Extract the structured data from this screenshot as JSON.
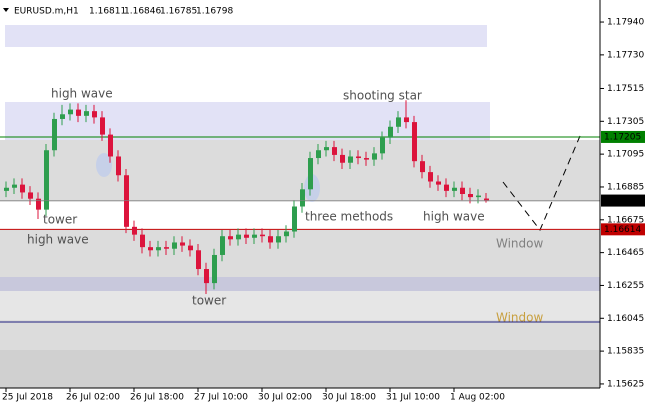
{
  "chart_data": {
    "type": "candlestick",
    "symbol": "EURUSD.m,H1",
    "categories": [
      "25 Jul 2018",
      null,
      null,
      null,
      null,
      null,
      null,
      null,
      "26 Jul 02:00",
      null,
      null,
      null,
      null,
      null,
      null,
      null,
      "26 Jul 18:00",
      null,
      null,
      null,
      null,
      null,
      null,
      null,
      "27 Jul 10:00",
      null,
      null,
      null,
      null,
      null,
      null,
      null,
      "30 Jul 02:00",
      null,
      null,
      null,
      null,
      null,
      null,
      null,
      "30 Jul 18:00",
      null,
      null,
      null,
      null,
      null,
      null,
      null,
      "31 Jul 10:00",
      null,
      null,
      null,
      null,
      null,
      null,
      null,
      "1 Aug 02:00",
      null,
      null,
      null,
      null
    ],
    "open": [
      1.1686,
      1.1688,
      1.169,
      1.1685,
      1.1681,
      1.1674,
      1.1712,
      1.1732,
      1.1735,
      1.1738,
      1.1734,
      1.1737,
      1.1733,
      1.1722,
      1.1708,
      1.1696,
      1.1663,
      1.1658,
      1.165,
      1.1648,
      1.165,
      1.1649,
      1.1653,
      1.1651,
      1.1648,
      1.1636,
      1.1627,
      1.1645,
      1.1657,
      1.1655,
      1.1658,
      1.1656,
      1.1658,
      1.1657,
      1.1653,
      1.1657,
      1.166,
      1.1676,
      1.1687,
      1.1707,
      1.1712,
      1.1714,
      1.1709,
      1.1704,
      1.1708,
      1.1707,
      1.1706,
      1.171,
      1.172,
      1.1727,
      1.1733,
      1.173,
      1.1705,
      1.1698,
      1.1692,
      1.169,
      1.1686,
      1.1688,
      1.1684,
      1.1682,
      1.16811
    ],
    "high": [
      1.1692,
      1.1694,
      1.1694,
      1.1689,
      1.1685,
      1.1716,
      1.1736,
      1.1741,
      1.1742,
      1.1742,
      1.1741,
      1.1741,
      1.1737,
      1.1726,
      1.1712,
      1.17,
      1.1667,
      1.1662,
      1.1654,
      1.1654,
      1.1654,
      1.1657,
      1.1657,
      1.1655,
      1.1652,
      1.164,
      1.1649,
      1.1661,
      1.1661,
      1.1662,
      1.1662,
      1.1662,
      1.1662,
      1.1661,
      1.1661,
      1.1664,
      1.168,
      1.1691,
      1.1711,
      1.1716,
      1.1718,
      1.1718,
      1.1713,
      1.1712,
      1.1712,
      1.1711,
      1.1714,
      1.1724,
      1.1731,
      1.1737,
      1.1744,
      1.1734,
      1.1709,
      1.1702,
      1.1696,
      1.1694,
      1.1692,
      1.1692,
      1.1688,
      1.1687,
      1.16846
    ],
    "low": [
      1.1682,
      1.1684,
      1.1681,
      1.1677,
      1.1668,
      1.167,
      1.1708,
      1.1728,
      1.1731,
      1.173,
      1.173,
      1.1729,
      1.1718,
      1.1704,
      1.1692,
      1.1659,
      1.1654,
      1.1646,
      1.1644,
      1.1644,
      1.1645,
      1.1645,
      1.1647,
      1.1644,
      1.1632,
      1.162,
      1.1623,
      1.1641,
      1.1651,
      1.1651,
      1.1652,
      1.1652,
      1.1653,
      1.1649,
      1.1649,
      1.1653,
      1.1656,
      1.1672,
      1.1683,
      1.1703,
      1.1708,
      1.1705,
      1.17,
      1.17,
      1.1703,
      1.1702,
      1.1702,
      1.1706,
      1.1716,
      1.1723,
      1.1726,
      1.1701,
      1.1694,
      1.1688,
      1.1686,
      1.1682,
      1.1682,
      1.168,
      1.1678,
      1.1678,
      1.16785
    ],
    "close": [
      1.1688,
      1.169,
      1.1685,
      1.1681,
      1.1674,
      1.1712,
      1.1732,
      1.1735,
      1.1738,
      1.1734,
      1.1737,
      1.1733,
      1.1722,
      1.1708,
      1.1696,
      1.1663,
      1.1658,
      1.165,
      1.1648,
      1.165,
      1.1649,
      1.1653,
      1.1651,
      1.1648,
      1.1636,
      1.1627,
      1.1645,
      1.1657,
      1.1655,
      1.1658,
      1.1656,
      1.1658,
      1.1657,
      1.1653,
      1.1657,
      1.166,
      1.1676,
      1.1687,
      1.1707,
      1.1712,
      1.1714,
      1.1709,
      1.1704,
      1.1708,
      1.1707,
      1.1706,
      1.171,
      1.172,
      1.1727,
      1.1733,
      1.173,
      1.1705,
      1.1698,
      1.1692,
      1.169,
      1.1686,
      1.1688,
      1.1684,
      1.1682,
      1.1683,
      1.16798
    ],
    "up_color": "#2e9e4e",
    "down_color": "#dc143c",
    "ylim": [
      1.15599,
      1.18081
    ],
    "yticks": [
      {
        "value": 1.1794,
        "label": "1.17940"
      },
      {
        "value": 1.1773,
        "label": "1.17730"
      },
      1.17515,
      1.17305,
      1.17095,
      1.16885,
      1.16675,
      1.16465,
      1.16255,
      1.16045,
      1.15835,
      1.15625
    ],
    "levels": [
      {
        "value": 1.17205,
        "color": "#008000"
      },
      {
        "value": 1.16614,
        "color": "#c00000"
      }
    ],
    "annotations": [
      "high wave",
      "tower",
      "high wave",
      "tower",
      "three methods",
      "shooting star",
      "high wave",
      "Window",
      "Window"
    ]
  }
}
